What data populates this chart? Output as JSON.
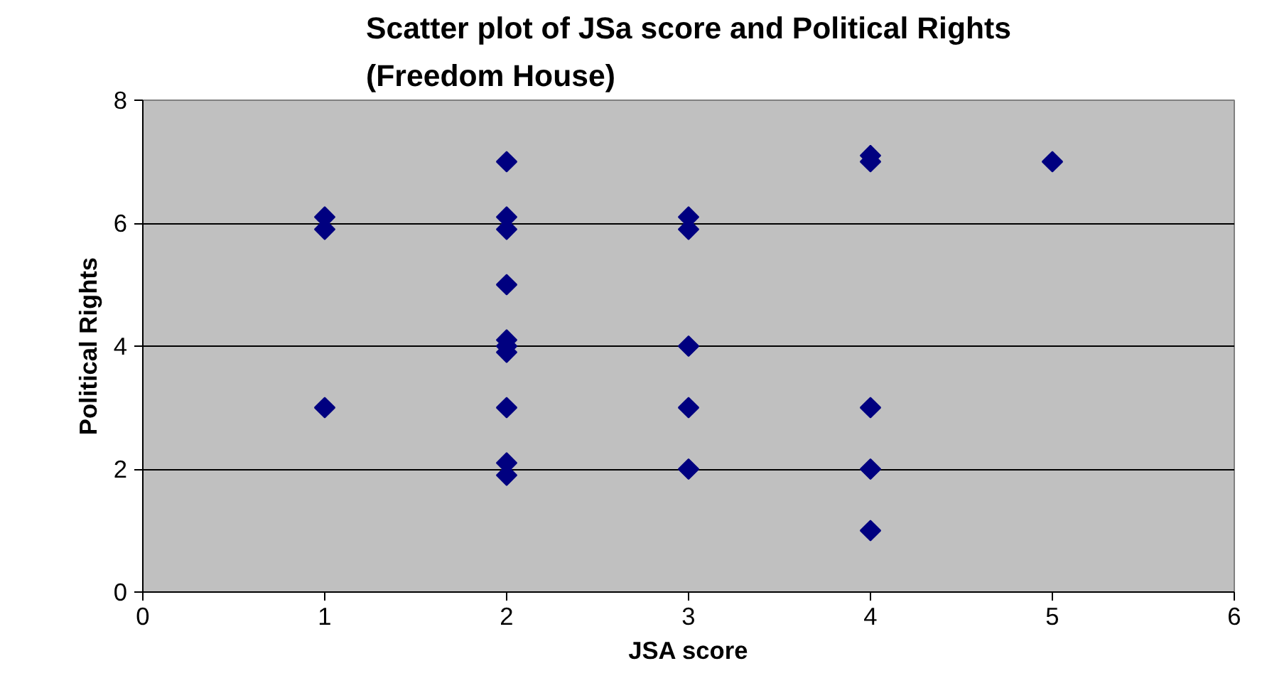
{
  "chart_data": {
    "type": "scatter",
    "title": "Scatter plot of JSa score and Political Rights\n(Freedom House)",
    "xlabel": "JSA score",
    "ylabel": "Political Rights",
    "x": [
      1,
      1,
      1,
      2,
      2,
      2,
      2,
      2,
      2,
      2,
      2,
      2,
      2,
      3,
      3,
      3,
      3,
      3,
      4,
      4,
      4,
      4,
      4,
      5
    ],
    "values": [
      6.1,
      5.9,
      3,
      7,
      6.1,
      5.9,
      5,
      4.1,
      3.9,
      3,
      2.1,
      1.9,
      4,
      6.1,
      5.9,
      4,
      3,
      2,
      7.1,
      7,
      3,
      2,
      1,
      7
    ],
    "color": "#000080",
    "marker": "diamond",
    "xlim": [
      0,
      6
    ],
    "ylim": [
      0,
      8
    ],
    "xticks": [
      0,
      1,
      2,
      3,
      4,
      5,
      6
    ],
    "yticks": [
      0,
      2,
      4,
      6,
      8
    ],
    "grid": "y"
  }
}
